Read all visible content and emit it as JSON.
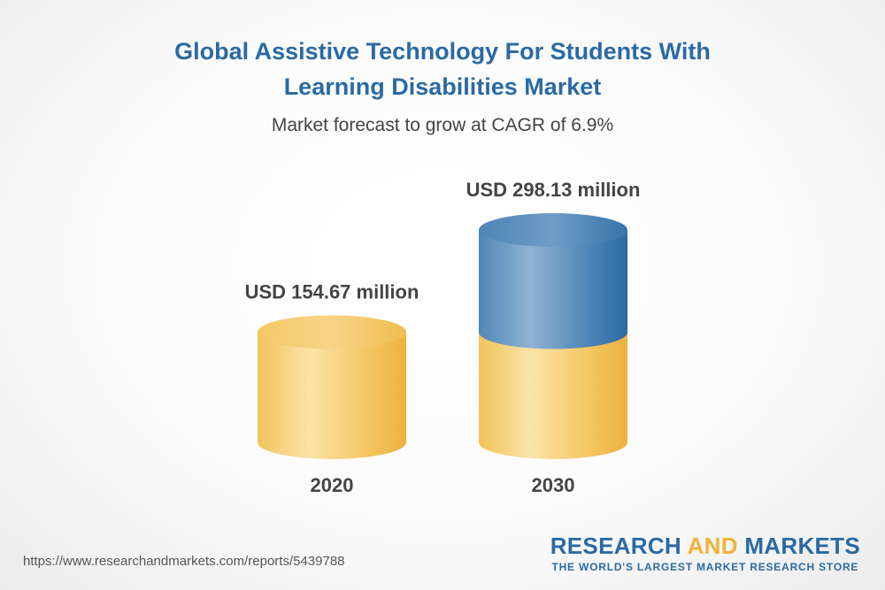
{
  "title_line1": "Global Assistive Technology For Students With",
  "title_line2": "Learning Disabilities Market",
  "subtitle": "Market forecast to grow at CAGR of 6.9%",
  "source_url": "https://www.researchandmarkets.com/reports/5439788",
  "brand": {
    "word1": "RESEARCH",
    "word2": "AND",
    "word3": "MARKETS",
    "tagline": "THE WORLD'S LARGEST MARKET RESEARCH STORE"
  },
  "colors": {
    "title": "#2a6aa3",
    "gold": "#f2c14e",
    "blue": "#2f6ea3"
  },
  "chart_data": {
    "type": "bar",
    "style": "3d-cylinder",
    "categories": [
      "2020",
      "2030"
    ],
    "values": [
      154.67,
      298.13
    ],
    "value_labels": [
      "USD 154.67 million",
      "USD 298.13 million"
    ],
    "unit": "USD million",
    "cagr": "6.9%"
  }
}
